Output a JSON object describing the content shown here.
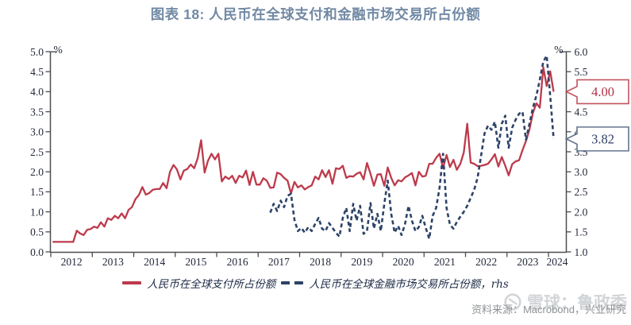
{
  "title": "图表 18: 人民币在全球支付和金融市场交易所占份额",
  "source_note": "资料来源：Macrobond，兴业研究",
  "watermark": {
    "brand": "雪球：鲁政委",
    "logo_icon": "xueqiu-circle-logo"
  },
  "colors": {
    "title": "#7189a4",
    "payments_red": "#bd3a4b",
    "financial_navy": "#2d4367",
    "axis": "#4c4d4f",
    "tick_text": "#23293a",
    "source_text": "#8f9396",
    "watermark_gray": "#d2d5d8",
    "callout_red_border": "#c45360",
    "callout_red_text": "#b03347",
    "callout_navy_border": "#64748e",
    "callout_navy_text": "#2d3f63"
  },
  "axes": {
    "left": {
      "unit": "%",
      "ticks": [
        "5.0",
        "4.5",
        "4.0",
        "3.5",
        "3.0",
        "2.5",
        "2.0",
        "1.5",
        "1.0",
        "0.5",
        "0.0"
      ]
    },
    "right": {
      "unit": "%",
      "ticks": [
        "6.0",
        "5.5",
        "5.0",
        "4.5",
        "4.0",
        "3.5",
        "3.0",
        "2.5",
        "2.0",
        "1.5",
        "1.0"
      ]
    },
    "x": {
      "years": [
        "2012",
        "2013",
        "2014",
        "2015",
        "2016",
        "2017",
        "2018",
        "2019",
        "2020",
        "2021",
        "2022",
        "2023",
        "2024"
      ]
    }
  },
  "legend": [
    {
      "label": "人民币在全球支付所占份额",
      "style": "solid"
    },
    {
      "label": "人民币在全球金融市场交易所占份额，rhs",
      "style": "dashed"
    }
  ],
  "callouts": [
    {
      "label": "4.00",
      "value": 4.0,
      "axis": "left",
      "series": "payments"
    },
    {
      "label": "3.82",
      "value": 3.82,
      "axis": "right",
      "series": "financial"
    }
  ],
  "chart_data": {
    "type": "line",
    "title": "图表 18: 人民币在全球支付和金融市场交易所占份额",
    "x_axis": {
      "start_year": 2012,
      "end_year": 2024.45,
      "frequency": "monthly",
      "tick_years": [
        2012,
        2013,
        2014,
        2015,
        2016,
        2017,
        2018,
        2019,
        2020,
        2021,
        2022,
        2023,
        2024
      ]
    },
    "left_ylim": [
      0.0,
      5.0
    ],
    "right_ylim": [
      1.0,
      6.0
    ],
    "grid": false,
    "legend_position": "bottom",
    "series": [
      {
        "name": "人民币在全球支付所占份额",
        "axis": "left",
        "style": "solid",
        "color": "#bd3a4b",
        "start_year": 2012,
        "start_month": 1,
        "last_value_label": "4.00",
        "values": [
          0.25,
          0.25,
          0.25,
          0.25,
          0.25,
          0.25,
          0.25,
          0.53,
          0.46,
          0.42,
          0.55,
          0.57,
          0.63,
          0.6,
          0.74,
          0.63,
          0.84,
          0.8,
          0.9,
          0.84,
          0.96,
          0.84,
          1.05,
          1.12,
          1.32,
          1.42,
          1.62,
          1.43,
          1.47,
          1.55,
          1.57,
          1.57,
          1.72,
          1.59,
          2.0,
          2.17,
          2.06,
          1.81,
          2.03,
          2.07,
          2.18,
          2.09,
          2.34,
          2.79,
          1.98,
          2.28,
          2.45,
          2.31,
          2.45,
          1.76,
          1.88,
          1.82,
          1.9,
          1.72,
          1.9,
          1.86,
          2.03,
          1.67,
          2.0,
          1.68,
          1.68,
          1.84,
          1.78,
          1.6,
          1.61,
          1.98,
          1.94,
          1.85,
          1.78,
          1.46,
          1.75,
          1.61,
          1.66,
          1.56,
          1.62,
          1.66,
          1.88,
          1.81,
          2.04,
          1.87,
          2.04,
          1.7,
          2.09,
          2.07,
          2.15,
          1.85,
          1.89,
          1.88,
          1.95,
          1.99,
          1.81,
          2.22,
          1.95,
          1.65,
          1.93,
          1.94,
          1.65,
          2.11,
          1.85,
          1.66,
          1.79,
          1.76,
          1.86,
          1.91,
          1.97,
          1.66,
          2.0,
          1.88,
          1.9,
          2.2,
          2.2,
          2.35,
          2.45,
          2.1,
          2.42,
          2.12,
          2.3,
          2.05,
          2.2,
          2.48,
          3.2,
          2.23,
          2.2,
          2.14,
          2.15,
          2.17,
          2.2,
          2.31,
          2.44,
          2.13,
          2.37,
          2.15,
          1.91,
          2.19,
          2.26,
          2.29,
          2.54,
          2.77,
          3.06,
          3.47,
          3.71,
          3.6,
          4.61,
          4.14,
          4.51,
          4.0
        ]
      },
      {
        "name": "人民币在全球金融市场交易所占份额",
        "axis": "right",
        "style": "dashed",
        "color": "#2d4367",
        "start_year": 2017,
        "start_month": 4,
        "last_value_label": "3.82",
        "values": [
          1.98,
          2.2,
          2.02,
          2.28,
          2.12,
          2.4,
          2.45,
          1.8,
          1.52,
          1.6,
          1.48,
          1.62,
          1.52,
          1.7,
          1.85,
          1.58,
          1.52,
          1.72,
          1.6,
          1.48,
          1.38,
          1.85,
          2.1,
          1.52,
          2.2,
          1.78,
          2.15,
          1.45,
          1.52,
          2.22,
          1.58,
          1.95,
          1.52,
          2.2,
          2.78,
          1.95,
          1.48,
          1.65,
          1.42,
          1.7,
          2.15,
          1.78,
          1.52,
          1.62,
          1.9,
          1.6,
          1.33,
          1.9,
          2.1,
          2.6,
          3.45,
          2.1,
          1.68,
          1.58,
          1.75,
          1.88,
          2.0,
          2.15,
          2.35,
          2.55,
          2.85,
          3.4,
          3.95,
          4.15,
          4.05,
          4.25,
          3.6,
          4.2,
          4.4,
          3.6,
          4.1,
          4.3,
          4.45,
          4.5,
          3.8,
          4.2,
          4.6,
          4.9,
          5.3,
          5.75,
          5.9,
          4.9,
          3.82
        ]
      }
    ]
  }
}
